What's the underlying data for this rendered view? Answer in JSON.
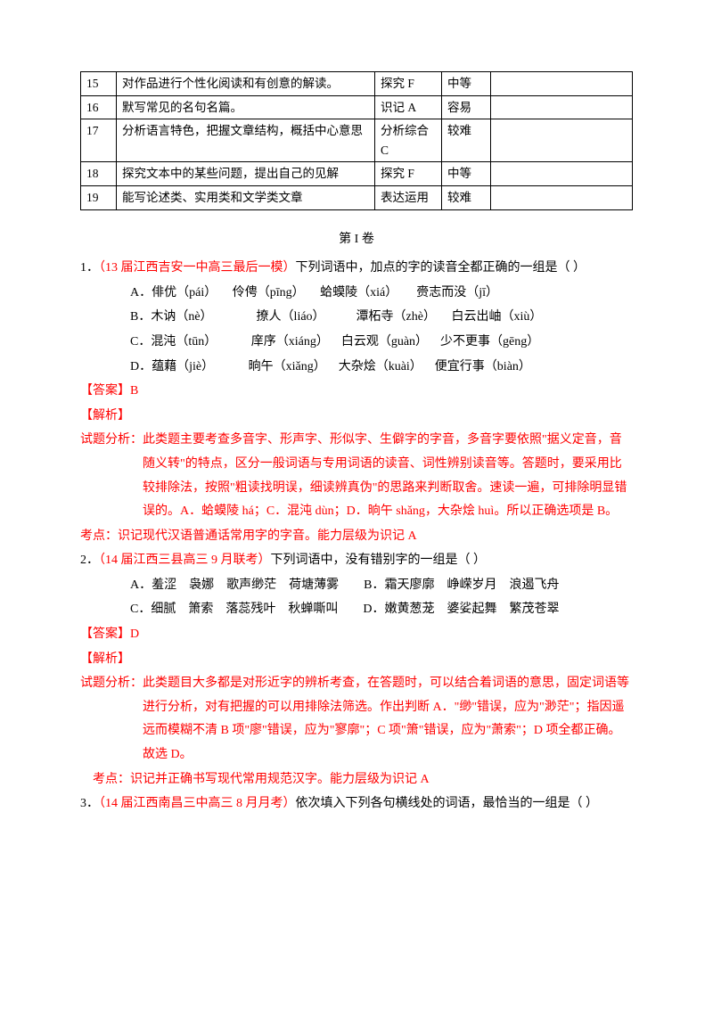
{
  "table": {
    "rows": [
      {
        "n": "15",
        "c1": "对作品进行个性化阅读和有创意的解读。",
        "c2": "探究 F",
        "c3": "中等"
      },
      {
        "n": "16",
        "c1": "默写常见的名句名篇。",
        "c2": "识记 A",
        "c3": "容易"
      },
      {
        "n": "17",
        "c1": "分析语言特色，把握文章结构，概括中心意思",
        "c2": "分析综合\nC",
        "c3": "较难"
      },
      {
        "n": "18",
        "c1": "探究文本中的某些问题，提出自己的见解",
        "c2": "探究 F",
        "c3": "中等"
      },
      {
        "n": "19",
        "c1": "能写论述类、实用类和文学类文章",
        "c2": "表达运用",
        "c3": "较难"
      }
    ]
  },
  "sectionTitle": "第 I 卷",
  "q1": {
    "prefix": "1．",
    "src": "（13 届江西吉安一中高三最后一模）",
    "stem": "下列词语中，加点的字的读音全都正确的一组是（    ）",
    "optA": "A．俳优（pái）　   伶俜（pīng）　   蛤蟆陵（xiá）　    赍志而没（jī）",
    "optB": "B．木讷（nè）　　　　撩人（liáo）　　　潭柘寺（zhè）　   白云出岫（xiù）",
    "optC": "C．混沌（tūn）　　　 庠序（xiáng）　  白云观（guàn）　  少不更事（gēng）",
    "optD": "D．蕴藉（jiè）　　　 晌午（xiǎng）　  大杂烩（kuài）　  便宜行事（biàn）",
    "ans": "【答案】B",
    "anaH": "【解析】",
    "ana": "试题分析：此类题主要考查多音字、形声字、形似字、生僻字的字音，多音字要依照\"据义定音，音随义转\"的特点，区分一般词语与专用词语的读音、词性辨别读音等。答题时，要采用比较排除法，按照\"粗读找明误，细读辨真伪\"的思路来判断取舍。速读一遍，可排除明显错误的。A．蛤蟆陵 há；C．混沌 dùn；D．晌午 shǎng，大杂烩 huì。所以正确选项是 B。",
    "kd": "考点：识记现代汉语普通话常用字的字音。能力层级为识记 A"
  },
  "q2": {
    "prefix": "2．",
    "src": "（14 届江西三县高三 9 月联考）",
    "stem": "下列词语中，没有错别字的一组是（    ）",
    "optA": "A．羞涩　袅娜　歌声缈茫　荷塘薄雾",
    "optB": "B．霜天廖廓　峥嵘岁月　浪遏飞舟",
    "optC": "C．细腻　箫索　落蕊残叶　秋蝉嘶叫",
    "optD": "D．嫩黄葱茏　婆娑起舞　繁茂苍翠",
    "ans": "【答案】D",
    "anaH": "【解析】",
    "ana": "试题分析：此类题目大多都是对形近字的辨析考查，在答题时，可以结合着词语的意思，固定词语等进行分析，对有把握的可以用排除法筛选。作出判断 A．\"缈\"错误，应为\"渺茫\"；指因遥远而模糊不清 B 项\"廖\"错误，应为\"寥廓\"；C 项\"箫\"错误，应为\"萧索\"；D 项全都正确。故选 D。",
    "kd": "考点：识记并正确书写现代常用规范汉字。能力层级为识记 A"
  },
  "q3": {
    "prefix": "3．",
    "src": "（14 届江西南昌三中高三 8 月月考）",
    "stem": "依次填入下列各句横线处的词语，最恰当的一组是（       ）"
  }
}
